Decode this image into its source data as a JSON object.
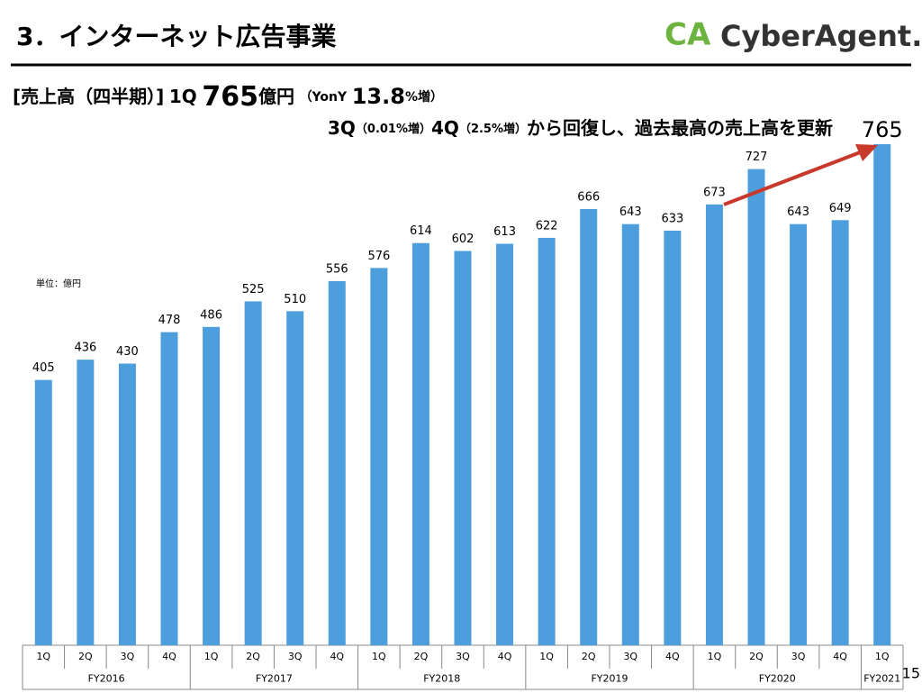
{
  "header": {
    "title": "3．インターネット広告事業",
    "logo": {
      "mark": "CA",
      "name": "CyberAgent."
    }
  },
  "chart_data": {
    "type": "bar",
    "headline": [
      "[売上高（四半期）]",
      "1Q",
      "765",
      "億円",
      "（YonY",
      "13.8",
      "%増）"
    ],
    "subheadline": [
      "3Q",
      "（0.01%増）",
      "4Q",
      "（2.5%増）",
      "から回復し、過去最高の売上高を更新"
    ],
    "unit_note": "単位：億円",
    "groups": [
      {
        "name": "FY2016",
        "categories": [
          "1Q",
          "2Q",
          "3Q",
          "4Q"
        ]
      },
      {
        "name": "FY2017",
        "categories": [
          "1Q",
          "2Q",
          "3Q",
          "4Q"
        ]
      },
      {
        "name": "FY2018",
        "categories": [
          "1Q",
          "2Q",
          "3Q",
          "4Q"
        ]
      },
      {
        "name": "FY2019",
        "categories": [
          "1Q",
          "2Q",
          "3Q",
          "4Q"
        ]
      },
      {
        "name": "FY2020",
        "categories": [
          "1Q",
          "2Q",
          "3Q",
          "4Q"
        ]
      },
      {
        "name": "FY2021",
        "categories": [
          "1Q"
        ]
      }
    ],
    "values": [
      405,
      436,
      430,
      478,
      486,
      525,
      510,
      556,
      576,
      614,
      602,
      613,
      622,
      666,
      643,
      633,
      673,
      727,
      643,
      649,
      765
    ],
    "color": "#4d9edc"
  },
  "page_number": "15"
}
